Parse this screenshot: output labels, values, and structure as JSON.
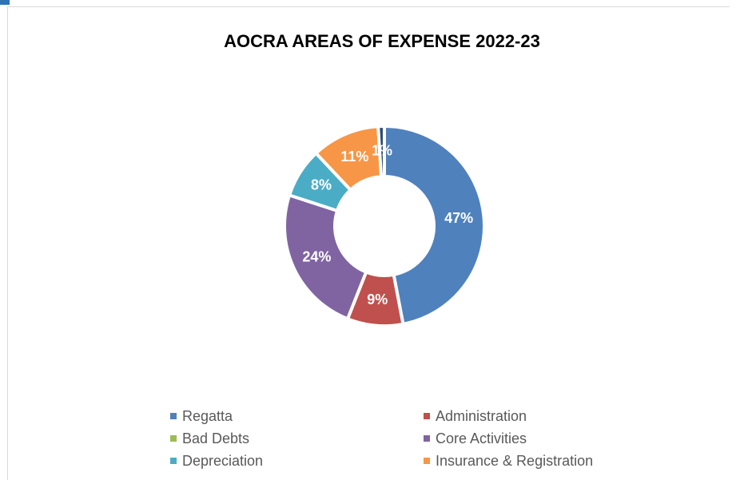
{
  "chart_data": {
    "type": "donut",
    "title": "AOCRA AREAS OF EXPENSE 2022-23",
    "categories": [
      "Regatta",
      "Administration",
      "Bad Debts",
      "Core Activities",
      "Depreciation",
      "Insurance & Registration",
      null
    ],
    "values": [
      47,
      9,
      0,
      24,
      8,
      11,
      1
    ],
    "value_labels": [
      "47%",
      "9%",
      null,
      "24%",
      "8%",
      "11%",
      "1%"
    ],
    "colors": [
      "#4f81bd",
      "#c0504d",
      "#9bbb59",
      "#8064a2",
      "#4bacc6",
      "#f79646",
      "#2c4d75"
    ],
    "legend": "bottom"
  }
}
